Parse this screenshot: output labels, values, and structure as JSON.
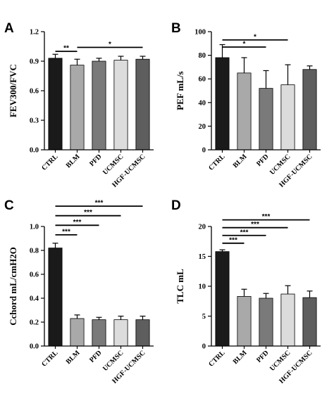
{
  "chart_data": [
    {
      "panel": "A",
      "type": "bar",
      "categories": [
        "CTRL",
        "BLM",
        "PFD",
        "UCMSC",
        "HGF-UCMSC"
      ],
      "values": [
        0.93,
        0.86,
        0.9,
        0.91,
        0.92
      ],
      "errors": [
        0.04,
        0.06,
        0.03,
        0.04,
        0.03
      ],
      "colors": [
        "#1a1a1a",
        "#a9a9a9",
        "#7a7a7a",
        "#dcdcdc",
        "#5e5e5e"
      ],
      "ylabel": "FEV300/FVC",
      "ylim": [
        0,
        1.2
      ],
      "yticks": [
        "0.0",
        "0.3",
        "0.6",
        "0.9",
        "1.2"
      ],
      "significance": [
        {
          "from": 0,
          "to": 1,
          "y": 1.0,
          "label": "**"
        },
        {
          "from": 1,
          "to": 4,
          "y": 1.04,
          "label": "*"
        }
      ]
    },
    {
      "panel": "B",
      "type": "bar",
      "categories": [
        "CTRL",
        "BLM",
        "PFD",
        "UCMSC",
        "HGF-UCMSC"
      ],
      "values": [
        78,
        65,
        52,
        55,
        68
      ],
      "errors": [
        11,
        13,
        15,
        17,
        3
      ],
      "colors": [
        "#1a1a1a",
        "#a9a9a9",
        "#7a7a7a",
        "#dcdcdc",
        "#5e5e5e"
      ],
      "ylabel": "PEF mL/s",
      "ylim": [
        0,
        100
      ],
      "yticks": [
        "0",
        "20",
        "40",
        "60",
        "80",
        "100"
      ],
      "significance": [
        {
          "from": 0,
          "to": 2,
          "y": 87,
          "label": "*"
        },
        {
          "from": 0,
          "to": 3,
          "y": 93,
          "label": "*"
        }
      ]
    },
    {
      "panel": "C",
      "type": "bar",
      "categories": [
        "CTRL",
        "BLM",
        "PFD",
        "UCMSC",
        "HGF-UCMSC"
      ],
      "values": [
        0.82,
        0.23,
        0.22,
        0.22,
        0.22
      ],
      "errors": [
        0.04,
        0.03,
        0.02,
        0.03,
        0.03
      ],
      "colors": [
        "#1a1a1a",
        "#a9a9a9",
        "#7a7a7a",
        "#dcdcdc",
        "#5e5e5e"
      ],
      "ylabel": "Cchord mL/cmH2O",
      "ylim": [
        0,
        1.0
      ],
      "yticks": [
        "0.0",
        "0.2",
        "0.4",
        "0.6",
        "0.8",
        "1.0"
      ],
      "significance": [
        {
          "from": 0,
          "to": 1,
          "y": 0.93,
          "label": "***"
        },
        {
          "from": 0,
          "to": 2,
          "y": 1.01,
          "label": "***"
        },
        {
          "from": 0,
          "to": 3,
          "y": 1.09,
          "label": "***"
        },
        {
          "from": 0,
          "to": 4,
          "y": 1.17,
          "label": "***"
        }
      ]
    },
    {
      "panel": "D",
      "type": "bar",
      "categories": [
        "CTRL",
        "BLM",
        "PFD",
        "UCMSC",
        "HGF-UCMSC"
      ],
      "values": [
        15.8,
        8.3,
        8.0,
        8.7,
        8.1
      ],
      "errors": [
        0.3,
        1.2,
        0.8,
        1.4,
        1.1
      ],
      "colors": [
        "#1a1a1a",
        "#a9a9a9",
        "#7a7a7a",
        "#dcdcdc",
        "#5e5e5e"
      ],
      "ylabel": "TLC mL",
      "ylim": [
        0,
        20
      ],
      "yticks": [
        "0",
        "5",
        "10",
        "15",
        "20"
      ],
      "significance": [
        {
          "from": 0,
          "to": 1,
          "y": 17.2,
          "label": "***"
        },
        {
          "from": 0,
          "to": 2,
          "y": 18.5,
          "label": "***"
        },
        {
          "from": 0,
          "to": 3,
          "y": 19.8,
          "label": "***"
        },
        {
          "from": 0,
          "to": 4,
          "y": 21.1,
          "label": "***"
        }
      ]
    }
  ]
}
